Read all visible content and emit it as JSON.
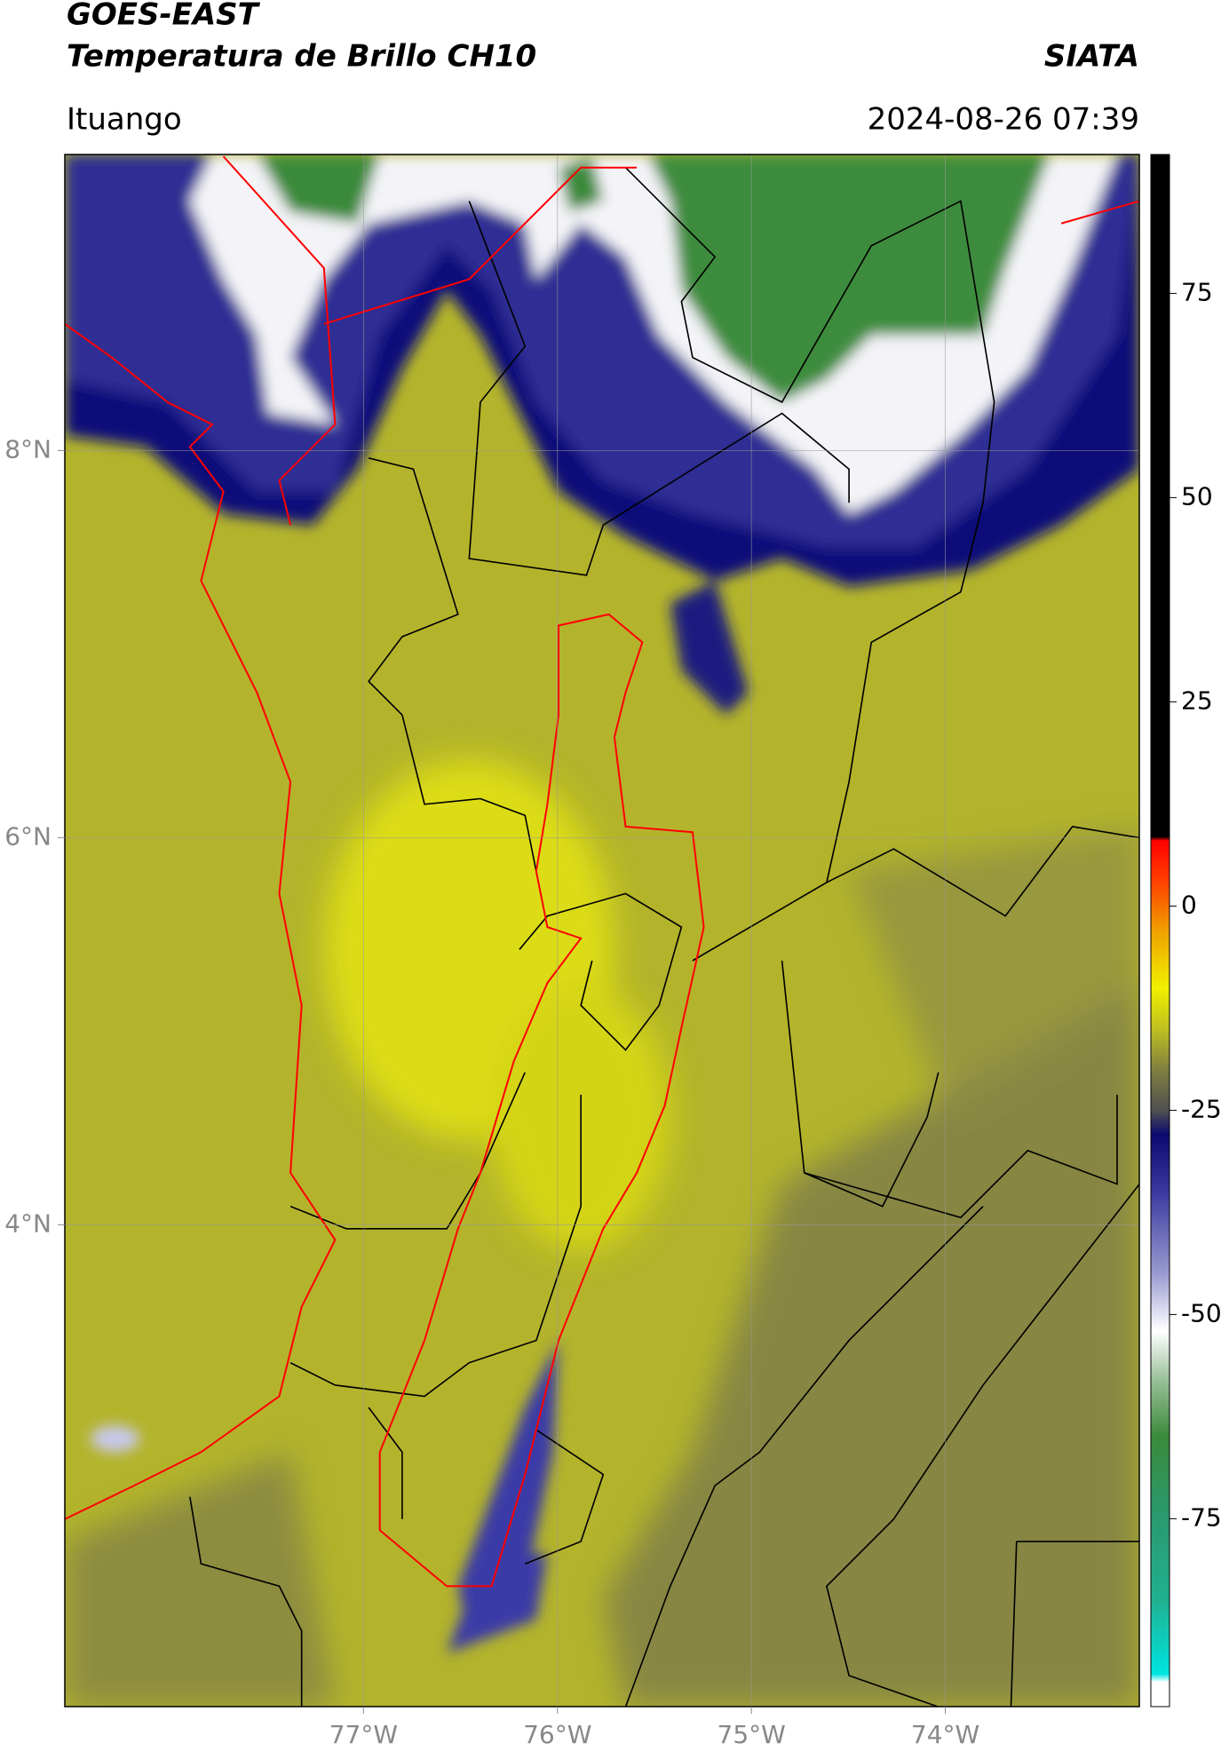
{
  "header": {
    "title": "GOES-EAST",
    "subtitle": "Temperatura de Brillo CH10",
    "org": "SIATA",
    "location": "Ituango",
    "datetime": "2024-08-26 07:39"
  },
  "map": {
    "xlim": [
      -78.54,
      -73.0
    ],
    "ylim": [
      1.51,
      9.53
    ],
    "xticks": [
      {
        "value": -77,
        "label": "77°W"
      },
      {
        "value": -76,
        "label": "76°W"
      },
      {
        "value": -75,
        "label": "75°W"
      },
      {
        "value": -74,
        "label": "74°W"
      }
    ],
    "yticks": [
      {
        "value": 4,
        "label": "4°N"
      },
      {
        "value": 6,
        "label": "6°N"
      },
      {
        "value": 8,
        "label": "8°N"
      }
    ],
    "grid": true
  },
  "colorbar": {
    "lim": [
      -98,
      92
    ],
    "ticks": [
      -75,
      -50,
      -25,
      0,
      25,
      50,
      75
    ],
    "stops": [
      {
        "value": -98,
        "color": "#ffffff"
      },
      {
        "value": -95,
        "color": "#ffffff"
      },
      {
        "value": -94,
        "color": "#00e5e0"
      },
      {
        "value": -85,
        "color": "#20b090"
      },
      {
        "value": -75,
        "color": "#2a9a70"
      },
      {
        "value": -65,
        "color": "#3a8a3a"
      },
      {
        "value": -58,
        "color": "#9ac09a"
      },
      {
        "value": -52,
        "color": "#ffffff"
      },
      {
        "value": -45,
        "color": "#9a9ad0"
      },
      {
        "value": -35,
        "color": "#3a3aa0"
      },
      {
        "value": -28,
        "color": "#0a0a70"
      },
      {
        "value": -25,
        "color": "#505050"
      },
      {
        "value": -20,
        "color": "#808040"
      },
      {
        "value": -15,
        "color": "#c0c020"
      },
      {
        "value": -10,
        "color": "#f0f000"
      },
      {
        "value": -3,
        "color": "#f0a000"
      },
      {
        "value": 3,
        "color": "#ff4000"
      },
      {
        "value": 8,
        "color": "#ff0000"
      },
      {
        "value": 8.5,
        "color": "#000000"
      },
      {
        "value": 92,
        "color": "#000000"
      }
    ]
  }
}
